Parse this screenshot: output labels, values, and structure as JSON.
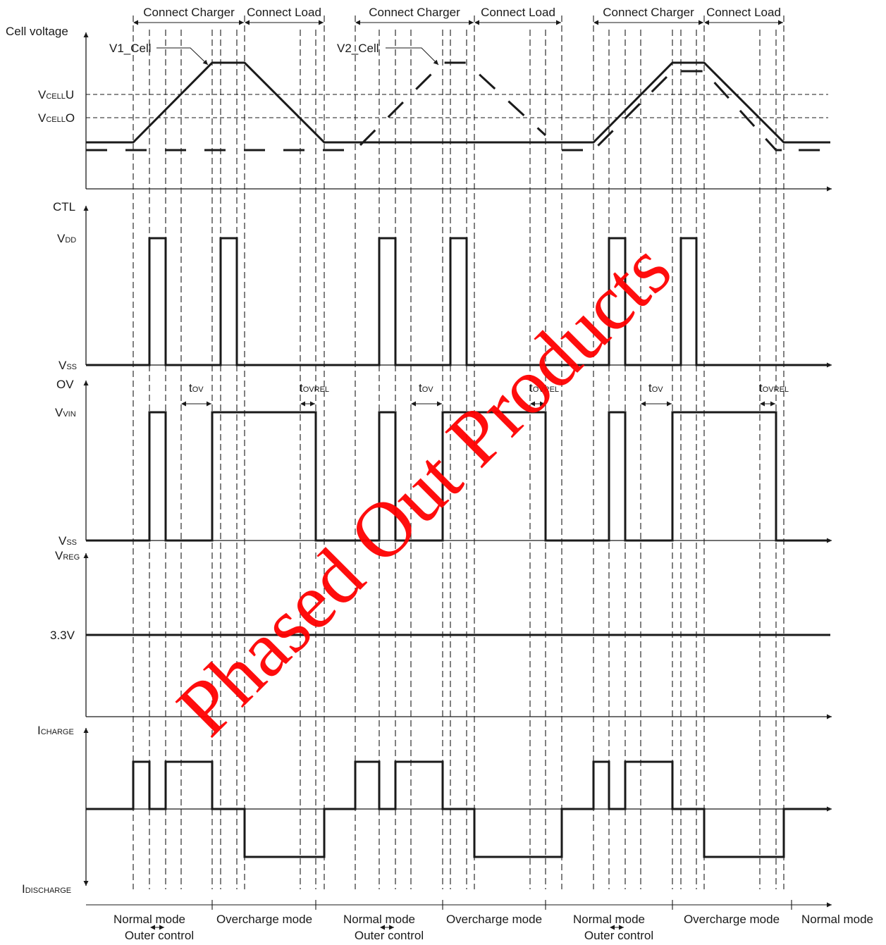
{
  "phase_labels": [
    "Connect Charger",
    "Connect Load",
    "Connect Charger",
    "Connect Load",
    "Connect Charger",
    "Connect Load"
  ],
  "axis_labels": {
    "cell_voltage": "Cell voltage",
    "ctl": "CTL",
    "ov": "OV",
    "vreg": {
      "main": "V",
      "sub": "REG"
    },
    "icharge": {
      "main": "I",
      "sub": "CHARGE"
    },
    "idischarge": {
      "main": "I",
      "sub": "DISCHARGE"
    }
  },
  "levels": {
    "vcellu": {
      "main": "V",
      "sub": "CELL",
      "tail": "U"
    },
    "vcello": {
      "main": "V",
      "sub": "CELL",
      "tail": "O"
    },
    "vdd": {
      "main": "V",
      "sub": "DD"
    },
    "vss_ctl": {
      "main": "V",
      "sub": "SS"
    },
    "vvin": {
      "main": "V",
      "sub": "VIN"
    },
    "vss_ov": {
      "main": "V",
      "sub": "SS"
    },
    "v33": "3.3V"
  },
  "traces": {
    "v1": "V1_Cell",
    "v2": "V2_Cell"
  },
  "timing": {
    "tov": {
      "main": "t",
      "sub": "OV"
    },
    "tovrel": {
      "main": "t",
      "sub": "OVREL"
    }
  },
  "modes": {
    "normal": "Normal mode",
    "overcharge": "Overcharge mode",
    "outer": "Outer control"
  },
  "watermark": "Phased Out Products"
}
